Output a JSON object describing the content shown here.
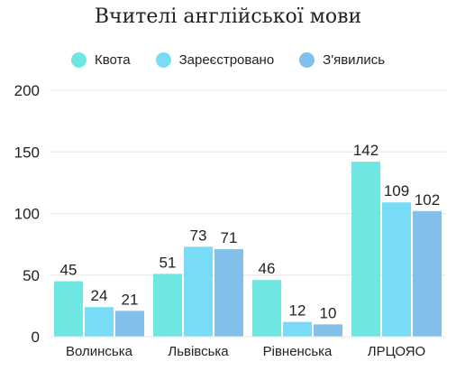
{
  "colors": {
    "kvota": "#6ee7e3",
    "zareiestrovano": "#78dcf7",
    "zyavylys": "#82bfe9",
    "grid": "#e6e6e6",
    "text": "#222222"
  },
  "chart_data": {
    "type": "bar",
    "title": "Вчителі англійської мови",
    "xlabel": "",
    "ylabel": "",
    "categories": [
      "Волинська",
      "Львівська",
      "Рівненська",
      "ЛРЦОЯО"
    ],
    "series": [
      {
        "name": "Квота",
        "values": [
          45,
          51,
          46,
          142
        ]
      },
      {
        "name": "Зареєстровано",
        "values": [
          24,
          73,
          12,
          109
        ]
      },
      {
        "name": "З'явились",
        "values": [
          21,
          71,
          10,
          102
        ]
      }
    ],
    "ylim": [
      0,
      200
    ],
    "yticks": [
      0,
      50,
      100,
      150,
      200
    ],
    "grid": true,
    "legend": "top-center"
  }
}
